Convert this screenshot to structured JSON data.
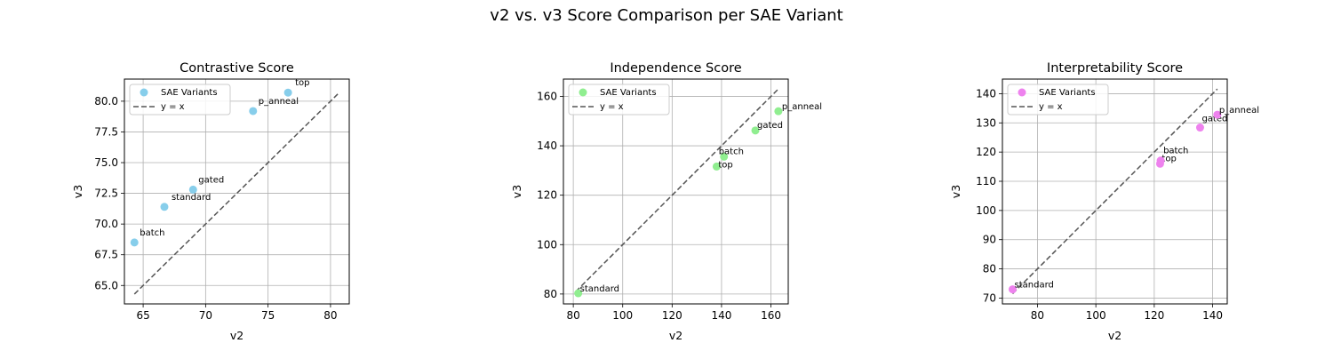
{
  "figure": {
    "suptitle": "v2 vs. v3 Score Comparison per SAE Variant"
  },
  "chart_data": [
    {
      "type": "scatter",
      "title": "Contrastive Score",
      "xlabel": "v2",
      "ylabel": "v3",
      "xlim": [
        63.5,
        81.5
      ],
      "ylim": [
        63.5,
        81.8
      ],
      "xticks": [
        65,
        70,
        75,
        80
      ],
      "yticks": [
        65.0,
        67.5,
        70.0,
        72.5,
        75.0,
        77.5,
        80.0
      ],
      "ytick_decimals": 1,
      "grid": true,
      "legend": {
        "position": "top-left",
        "entries": [
          "SAE Variants",
          "y = x"
        ]
      },
      "series": [
        {
          "name": "SAE Variants",
          "color": "#87ceeb",
          "points": [
            {
              "label": "batch",
              "x": 64.3,
              "y": 68.5
            },
            {
              "label": "standard",
              "x": 66.7,
              "y": 71.4
            },
            {
              "label": "gated",
              "x": 69.0,
              "y": 72.8
            },
            {
              "label": "p_anneal",
              "x": 73.8,
              "y": 79.2
            },
            {
              "label": "top",
              "x": 76.6,
              "y": 80.7
            }
          ]
        }
      ],
      "reference_line": {
        "name": "y = x",
        "from": 64.3,
        "to": 80.7
      }
    },
    {
      "type": "scatter",
      "title": "Independence Score",
      "xlabel": "v2",
      "ylabel": "v3",
      "xlim": [
        76,
        167
      ],
      "ylim": [
        76,
        167
      ],
      "xticks": [
        80,
        100,
        120,
        140,
        160
      ],
      "yticks": [
        80,
        100,
        120,
        140,
        160
      ],
      "ytick_decimals": 0,
      "grid": true,
      "legend": {
        "position": "top-left",
        "entries": [
          "SAE Variants",
          "y = x"
        ]
      },
      "series": [
        {
          "name": "SAE Variants",
          "color": "#90ee90",
          "points": [
            {
              "label": "standard",
              "x": 82.0,
              "y": 80.3
            },
            {
              "label": "top",
              "x": 138.0,
              "y": 131.6
            },
            {
              "label": "batch",
              "x": 141.0,
              "y": 135.6
            },
            {
              "label": "gated",
              "x": 153.7,
              "y": 146.2
            },
            {
              "label": "p_anneal",
              "x": 163.0,
              "y": 154.0
            }
          ]
        }
      ],
      "reference_line": {
        "name": "y = x",
        "from": 81.0,
        "to": 163.0
      }
    },
    {
      "type": "scatter",
      "title": "Interpretability Score",
      "xlabel": "v2",
      "ylabel": "v3",
      "xlim": [
        68,
        145
      ],
      "ylim": [
        68,
        145
      ],
      "xticks": [
        80,
        100,
        120,
        140
      ],
      "yticks": [
        70,
        80,
        90,
        100,
        110,
        120,
        130,
        140
      ],
      "ytick_decimals": 0,
      "grid": true,
      "legend": {
        "position": "top-left",
        "entries": [
          "SAE Variants",
          "y = x"
        ]
      },
      "series": [
        {
          "name": "SAE Variants",
          "color": "#ee82ee",
          "points": [
            {
              "label": "standard",
              "x": 71.5,
              "y": 73.0
            },
            {
              "label": "top",
              "x": 122.0,
              "y": 116.0
            },
            {
              "label": "batch",
              "x": 122.2,
              "y": 117.1
            },
            {
              "label": "gated",
              "x": 135.7,
              "y": 128.4
            },
            {
              "label": "p_anneal",
              "x": 141.6,
              "y": 132.8
            }
          ]
        }
      ],
      "reference_line": {
        "name": "y = x",
        "from": 71.5,
        "to": 141.6
      }
    }
  ]
}
